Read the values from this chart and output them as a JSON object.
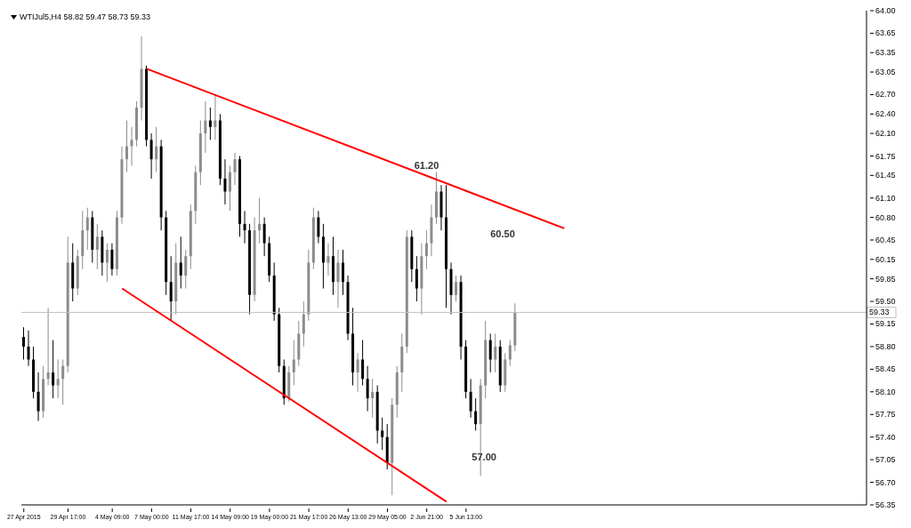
{
  "chart_data": {
    "type": "candlestick",
    "title": "WTIJul5,H4  58.82 59.47 58.73 59.33",
    "categories": [
      "27 Apr 2015",
      null,
      null,
      null,
      null,
      null,
      null,
      null,
      null,
      "29 Apr 17:00",
      null,
      null,
      null,
      null,
      null,
      null,
      null,
      null,
      "4 May 09:00",
      null,
      null,
      null,
      null,
      null,
      null,
      null,
      "7 May 00:00",
      null,
      null,
      null,
      null,
      null,
      null,
      null,
      "11 May 17:00",
      null,
      null,
      null,
      null,
      null,
      null,
      null,
      "14 May 09:00",
      null,
      null,
      null,
      null,
      null,
      null,
      null,
      "19 May 00:00",
      null,
      null,
      null,
      null,
      null,
      null,
      null,
      "21 May 17:00",
      null,
      null,
      null,
      null,
      null,
      null,
      null,
      "26 May 13:00",
      null,
      null,
      null,
      null,
      null,
      null,
      null,
      "29 May 05:00",
      null,
      null,
      null,
      null,
      null,
      null,
      null,
      "2 Jun 21:00",
      null,
      null,
      null,
      null,
      null,
      null,
      null,
      "5 Jun 13:00",
      null,
      null,
      null,
      null,
      null,
      null,
      null,
      null,
      null,
      null,
      null,
      null,
      null,
      null,
      null,
      null,
      null,
      null,
      null,
      null,
      null,
      null,
      null,
      null,
      null,
      null,
      null,
      null,
      null,
      null,
      null,
      null,
      null,
      null,
      null,
      null,
      null,
      null,
      null,
      null,
      null,
      null,
      null,
      null,
      null,
      null,
      null,
      null,
      null,
      null,
      null,
      null,
      null,
      null,
      null,
      null,
      null,
      null,
      null,
      null,
      null,
      null,
      null,
      null,
      null,
      null,
      null,
      null,
      null,
      null,
      null,
      null,
      null,
      null,
      null,
      null,
      null,
      null,
      null,
      null,
      null
    ],
    "ohlc": [
      [
        58.95,
        59.1,
        58.6,
        58.8
      ],
      [
        58.8,
        59.05,
        58.5,
        58.6
      ],
      [
        58.6,
        58.8,
        58.0,
        58.1
      ],
      [
        58.1,
        58.4,
        57.65,
        57.8
      ],
      [
        57.8,
        58.5,
        57.7,
        58.3
      ],
      [
        58.3,
        59.4,
        58.2,
        58.4
      ],
      [
        58.4,
        58.9,
        58.0,
        58.2
      ],
      [
        58.2,
        58.6,
        58.0,
        58.3
      ],
      [
        58.3,
        58.6,
        57.9,
        58.5
      ],
      [
        58.5,
        60.5,
        58.4,
        60.1
      ],
      [
        60.1,
        60.4,
        59.5,
        59.7
      ],
      [
        59.7,
        60.3,
        59.6,
        60.2
      ],
      [
        60.2,
        60.9,
        60.0,
        60.6
      ],
      [
        60.6,
        60.95,
        60.3,
        60.8
      ],
      [
        60.8,
        60.9,
        60.1,
        60.3
      ],
      [
        60.3,
        60.7,
        60.0,
        60.5
      ],
      [
        60.5,
        60.6,
        59.9,
        60.1
      ],
      [
        60.1,
        60.4,
        59.8,
        60.3
      ],
      [
        60.3,
        60.4,
        59.9,
        60.0
      ],
      [
        60.0,
        60.9,
        59.9,
        60.8
      ],
      [
        60.8,
        61.9,
        60.7,
        61.7
      ],
      [
        61.7,
        62.3,
        61.5,
        61.9
      ],
      [
        61.9,
        62.2,
        61.6,
        62.0
      ],
      [
        62.0,
        62.6,
        61.9,
        62.5
      ],
      [
        62.5,
        63.6,
        62.3,
        63.1
      ],
      [
        63.1,
        63.15,
        61.9,
        62.0
      ],
      [
        62.0,
        62.1,
        61.4,
        61.7
      ],
      [
        61.7,
        62.2,
        61.5,
        61.9
      ],
      [
        61.9,
        62.0,
        60.6,
        60.8
      ],
      [
        60.8,
        60.9,
        59.6,
        59.8
      ],
      [
        59.8,
        60.2,
        59.2,
        59.5
      ],
      [
        59.5,
        60.4,
        59.3,
        60.1
      ],
      [
        60.1,
        60.5,
        59.7,
        59.9
      ],
      [
        59.9,
        60.3,
        59.7,
        60.2
      ],
      [
        60.2,
        61.0,
        60.0,
        60.9
      ],
      [
        60.9,
        61.6,
        60.7,
        61.5
      ],
      [
        61.5,
        62.3,
        61.3,
        62.1
      ],
      [
        62.1,
        62.6,
        61.8,
        62.3
      ],
      [
        62.3,
        62.5,
        62.0,
        62.2
      ],
      [
        62.2,
        62.7,
        62.0,
        62.3
      ],
      [
        62.3,
        62.4,
        61.3,
        61.4
      ],
      [
        61.4,
        61.7,
        61.0,
        61.2
      ],
      [
        61.2,
        61.6,
        60.9,
        61.5
      ],
      [
        61.5,
        61.8,
        61.3,
        61.7
      ],
      [
        61.7,
        61.75,
        60.5,
        60.7
      ],
      [
        60.7,
        60.9,
        60.4,
        60.6
      ],
      [
        60.6,
        60.7,
        59.3,
        59.6
      ],
      [
        59.6,
        60.8,
        59.5,
        60.6
      ],
      [
        60.6,
        61.1,
        60.4,
        60.7
      ],
      [
        60.7,
        60.8,
        60.2,
        60.4
      ],
      [
        60.4,
        60.5,
        59.8,
        59.9
      ],
      [
        59.9,
        60.1,
        59.2,
        59.3
      ],
      [
        59.3,
        59.4,
        58.4,
        58.5
      ],
      [
        58.5,
        58.6,
        57.9,
        58.0
      ],
      [
        58.0,
        58.5,
        57.95,
        58.4
      ],
      [
        58.4,
        58.9,
        58.2,
        58.6
      ],
      [
        58.6,
        59.2,
        58.5,
        59.0
      ],
      [
        59.0,
        59.5,
        58.8,
        59.3
      ],
      [
        59.3,
        60.3,
        59.2,
        60.1
      ],
      [
        60.1,
        60.95,
        60.0,
        60.8
      ],
      [
        60.8,
        60.9,
        60.4,
        60.5
      ],
      [
        60.5,
        60.7,
        59.7,
        60.1
      ],
      [
        60.1,
        60.4,
        59.9,
        60.2
      ],
      [
        60.2,
        60.5,
        59.6,
        59.8
      ],
      [
        59.8,
        60.3,
        59.4,
        60.1
      ],
      [
        60.1,
        60.3,
        59.6,
        59.8
      ],
      [
        59.8,
        59.9,
        58.9,
        59.0
      ],
      [
        59.0,
        59.4,
        58.2,
        58.4
      ],
      [
        58.4,
        58.7,
        58.1,
        58.6
      ],
      [
        58.6,
        58.9,
        58.2,
        58.3
      ],
      [
        58.3,
        58.5,
        57.8,
        58.0
      ],
      [
        58.0,
        58.3,
        57.7,
        58.1
      ],
      [
        58.1,
        58.2,
        57.3,
        57.5
      ],
      [
        57.5,
        57.7,
        57.2,
        57.4
      ],
      [
        57.4,
        57.6,
        56.9,
        57.0
      ],
      [
        57.0,
        58.0,
        56.5,
        57.9
      ],
      [
        57.9,
        58.5,
        57.7,
        58.4
      ],
      [
        58.4,
        59.0,
        58.1,
        58.8
      ],
      [
        58.8,
        60.6,
        58.7,
        60.5
      ],
      [
        60.5,
        60.6,
        59.8,
        60.0
      ],
      [
        60.0,
        60.2,
        59.5,
        59.7
      ],
      [
        59.7,
        60.4,
        59.3,
        60.2
      ],
      [
        60.2,
        60.6,
        60.0,
        60.4
      ],
      [
        60.4,
        61.0,
        60.2,
        60.8
      ],
      [
        60.8,
        61.5,
        60.7,
        61.2
      ],
      [
        61.2,
        61.3,
        60.6,
        60.8
      ],
      [
        60.8,
        61.3,
        59.4,
        60.0
      ],
      [
        60.0,
        60.1,
        59.3,
        59.6
      ],
      [
        59.6,
        59.9,
        59.5,
        59.8
      ],
      [
        59.8,
        59.9,
        58.6,
        58.8
      ],
      [
        58.8,
        58.9,
        58.0,
        58.1
      ],
      [
        58.1,
        58.3,
        57.7,
        57.8
      ],
      [
        57.8,
        58.0,
        57.5,
        57.6
      ],
      [
        57.6,
        58.3,
        56.8,
        58.2
      ],
      [
        58.2,
        59.2,
        58.0,
        58.9
      ],
      [
        58.9,
        59.0,
        58.4,
        58.6
      ],
      [
        58.6,
        59.0,
        58.4,
        58.8
      ],
      [
        58.8,
        58.9,
        58.1,
        58.2
      ],
      [
        58.2,
        58.7,
        58.1,
        58.6
      ],
      [
        58.6,
        58.9,
        58.5,
        58.82
      ],
      [
        58.82,
        59.47,
        58.73,
        59.33
      ],
      null,
      null,
      null,
      null,
      null,
      null,
      null,
      null,
      null,
      null,
      null,
      null,
      null,
      null,
      null,
      null,
      null,
      null,
      null,
      null,
      null,
      null,
      null,
      null,
      null,
      null,
      null,
      null,
      null,
      null,
      null,
      null,
      null,
      null,
      null,
      null,
      null,
      null,
      null,
      null,
      null,
      null,
      null,
      null,
      null,
      null,
      null,
      null,
      null,
      null,
      null,
      null,
      null,
      null,
      null,
      null,
      null,
      null,
      null,
      null,
      null,
      null,
      null,
      null,
      null,
      null,
      null,
      null,
      null,
      null,
      null
    ],
    "series": [
      {
        "type": "line",
        "color": "#ff0000",
        "values": [
          null,
          null,
          null,
          null,
          null,
          null,
          null,
          null,
          null,
          null,
          null,
          null,
          null,
          null,
          null,
          null,
          null,
          null,
          null,
          null,
          null,
          null,
          null,
          null,
          null,
          63.1,
          null,
          null,
          null,
          null,
          null,
          null,
          null,
          null,
          null,
          null,
          null,
          null,
          null,
          null,
          null,
          null,
          null,
          null,
          null,
          null,
          null,
          null,
          null,
          null,
          null,
          null,
          null,
          null,
          null,
          null,
          null,
          null,
          null,
          null,
          null,
          null,
          null,
          null,
          null,
          null,
          null,
          null,
          null,
          null,
          null,
          null,
          null,
          null,
          null,
          null,
          null,
          null,
          null,
          null,
          null,
          null,
          null,
          null,
          null,
          null,
          null,
          null,
          null,
          null,
          null,
          null,
          null,
          null,
          null,
          null,
          null,
          null,
          null,
          null,
          null,
          null,
          null,
          null,
          null,
          null,
          null,
          null,
          null,
          null,
          60.63,
          null,
          null,
          null,
          null,
          null,
          null,
          null,
          null,
          null,
          null,
          null,
          null,
          null,
          null,
          null,
          null,
          null,
          null,
          null,
          null,
          null,
          null,
          null,
          null,
          null,
          null,
          null,
          null,
          null,
          null,
          null,
          null,
          null,
          null,
          null,
          null,
          null,
          null,
          null,
          null,
          null,
          null,
          null,
          null,
          null,
          null,
          null,
          null,
          null,
          null,
          null,
          null,
          null,
          null,
          null,
          null,
          null,
          null,
          null,
          null,
          null
        ]
      },
      {
        "type": "line",
        "color": "#ff0000",
        "values": [
          null,
          null,
          null,
          null,
          null,
          null,
          null,
          null,
          null,
          null,
          null,
          null,
          null,
          null,
          null,
          null,
          null,
          null,
          null,
          null,
          59.7,
          null,
          null,
          null,
          null,
          null,
          null,
          null,
          null,
          null,
          null,
          null,
          null,
          null,
          null,
          null,
          null,
          null,
          null,
          null,
          null,
          null,
          null,
          null,
          null,
          null,
          null,
          null,
          null,
          null,
          null,
          null,
          null,
          null,
          null,
          null,
          null,
          null,
          null,
          null,
          null,
          null,
          null,
          null,
          null,
          null,
          null,
          null,
          null,
          null,
          null,
          null,
          null,
          null,
          null,
          null,
          null,
          null,
          null,
          null,
          null,
          null,
          null,
          null,
          null,
          null,
          56.4,
          null,
          null,
          null,
          null,
          null,
          null,
          null,
          null,
          null,
          null,
          null,
          null,
          null,
          null,
          null,
          null,
          null,
          null,
          null,
          null,
          null,
          null,
          null,
          null,
          null,
          null,
          null,
          null,
          null,
          null,
          null,
          null,
          null,
          null,
          null,
          null,
          null,
          null,
          null,
          null,
          null,
          null,
          null,
          null,
          null,
          null,
          null,
          null,
          null,
          null,
          null,
          null,
          null,
          null,
          null,
          null,
          null,
          null,
          null,
          null,
          null,
          null,
          null,
          null,
          null,
          null,
          null,
          null,
          null,
          null,
          null,
          null,
          null,
          null,
          null,
          null,
          null,
          null,
          null,
          null,
          null,
          null,
          null,
          null,
          null
        ]
      }
    ],
    "ylim": [
      56.35,
      64
    ],
    "yticks": [
      {
        "value": 64,
        "label": "64.00"
      },
      {
        "value": 63.65,
        "label": "63.65"
      },
      {
        "value": 63.35,
        "label": "63.35"
      },
      {
        "value": 63.05,
        "label": "63.05"
      },
      {
        "value": 62.7,
        "label": "62.70"
      },
      {
        "value": 62.4,
        "label": "62.40"
      },
      {
        "value": 62.1,
        "label": "62.10"
      },
      {
        "value": 61.75,
        "label": "61.75"
      },
      {
        "value": 61.45,
        "label": "61.45"
      },
      {
        "value": 61.1,
        "label": "61.10"
      },
      {
        "value": 60.8,
        "label": "60.80"
      },
      {
        "value": 60.45,
        "label": "60.45"
      },
      {
        "value": 60.15,
        "label": "60.15"
      },
      {
        "value": 59.85,
        "label": "59.85"
      },
      {
        "value": 59.5,
        "label": "59.50"
      },
      {
        "value": 59.15,
        "label": "59.15"
      },
      {
        "value": 58.8,
        "label": "58.80"
      },
      {
        "value": 58.45,
        "label": "58.45"
      },
      {
        "value": 58.1,
        "label": "58.10"
      },
      {
        "value": 57.75,
        "label": "57.75"
      },
      {
        "value": 57.4,
        "label": "57.40"
      },
      {
        "value": 57.05,
        "label": "57.05"
      },
      {
        "value": 56.7,
        "label": "56.70"
      },
      {
        "value": 56.35,
        "label": "56.35"
      }
    ],
    "ref_lines": [
      {
        "axis": "y",
        "value": 59.33,
        "label": "59.33",
        "color": "#c0c0c0"
      }
    ],
    "annotations": [
      "61.20",
      "60.50",
      "57.00"
    ],
    "grid": false,
    "legend": false
  }
}
